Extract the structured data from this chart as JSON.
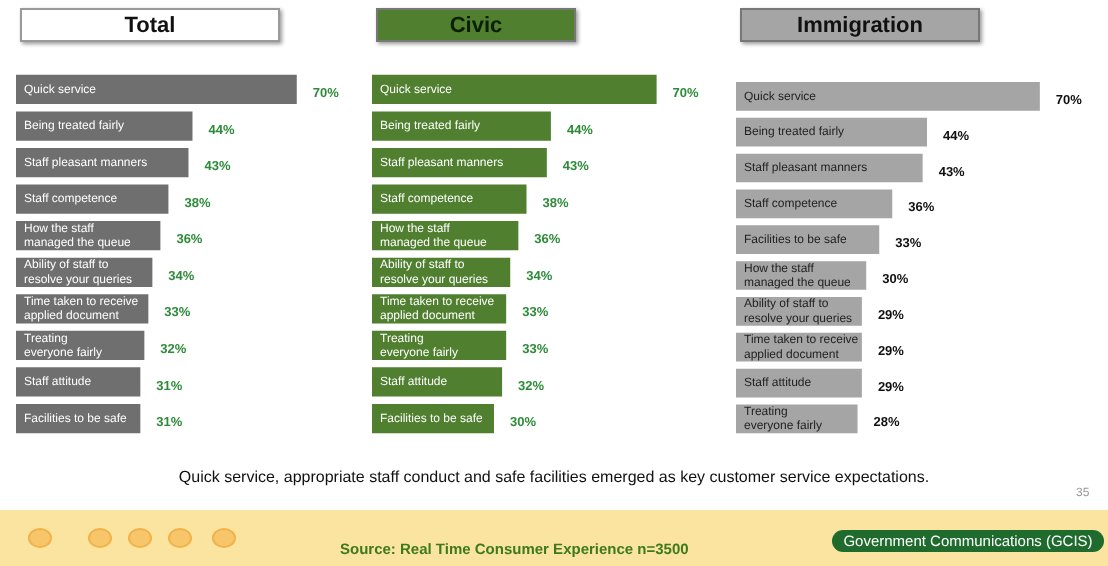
{
  "chart_data": [
    {
      "type": "bar",
      "orientation": "horizontal",
      "title": "Total",
      "categories": [
        "Quick service",
        "Being treated fairly",
        "Staff pleasant manners",
        "Staff competence",
        "How the staff managed the queue",
        "Ability of staff to resolve your queries",
        "Time taken to receive applied document",
        "Treating everyone fairly",
        "Staff attitude",
        "Facilities to be safe"
      ],
      "values": [
        70,
        44,
        43,
        38,
        36,
        34,
        33,
        32,
        31,
        31
      ],
      "value_labels": [
        "70%",
        "44%",
        "43%",
        "38%",
        "36%",
        "34%",
        "33%",
        "32%",
        "31%",
        "31%"
      ],
      "color": "#6f6f6f",
      "legend": false,
      "annotations": [
        "Quick service, appropriate staff conduct and safe facilities emerged as key customer service expectations.",
        "Source: Real Time Consumer Experience n=3500",
        "Government Communications (GCIS)",
        "35"
      ]
    },
    {
      "type": "bar",
      "orientation": "horizontal",
      "title": "Civic",
      "categories": [
        "Quick service",
        "Being treated fairly",
        "Staff pleasant manners",
        "Staff competence",
        "How the staff managed the queue",
        "Ability of staff to resolve your queries",
        "Time taken to receive applied document",
        "Treating everyone fairly",
        "Staff attitude",
        "Facilities to be safe"
      ],
      "values": [
        70,
        44,
        43,
        38,
        36,
        34,
        33,
        33,
        32,
        30
      ],
      "value_labels": [
        "70%",
        "44%",
        "43%",
        "38%",
        "36%",
        "34%",
        "33%",
        "33%",
        "32%",
        "30%"
      ],
      "color": "#4f7f2f",
      "legend": false
    },
    {
      "type": "bar",
      "orientation": "horizontal",
      "title": "Immigration",
      "categories": [
        "Quick service",
        "Being treated fairly",
        "Staff pleasant manners",
        "Staff competence",
        "Facilities to be safe",
        "How the staff managed the queue",
        "Ability of staff to resolve your queries",
        "Time taken to receive applied document",
        "Staff attitude",
        "Treating everyone fairly"
      ],
      "values": [
        70,
        44,
        43,
        36,
        33,
        30,
        29,
        29,
        29,
        28
      ],
      "value_labels": [
        "70%",
        "44%",
        "43%",
        "36%",
        "33%",
        "30%",
        "29%",
        "29%",
        "29%",
        "28%"
      ],
      "color": "#a5a5a5",
      "legend": false
    }
  ]
}
